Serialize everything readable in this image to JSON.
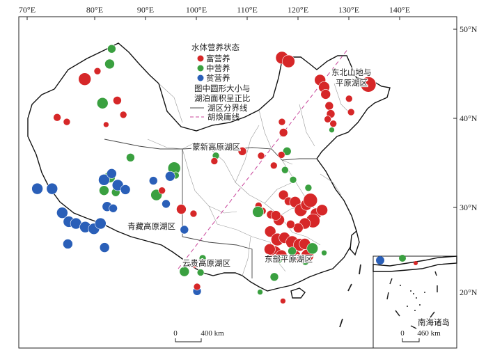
{
  "axes": {
    "lon_labels": [
      "70°E",
      "80°E",
      "90°E",
      "100°E",
      "110°E",
      "120°E",
      "130°E",
      "140°E"
    ],
    "lat_labels": [
      "50°N",
      "40°N",
      "30°N",
      "20°N"
    ]
  },
  "legend": {
    "title": "水体营养状态",
    "items": [
      {
        "label": "富营养",
        "color": "#d62728"
      },
      {
        "label": "中营养",
        "color": "#3aa040"
      },
      {
        "label": "贫营养",
        "color": "#2a5fb8"
      }
    ],
    "size_note_line1": "图中圆形大小与",
    "size_note_line2": "湖泊面积呈正比",
    "boundary_label": "湖区分界线",
    "huhuanyong_label": "胡焕庸线"
  },
  "regions": [
    {
      "key": "northeast_1",
      "text": "东北山地与"
    },
    {
      "key": "northeast_2",
      "text": "平原湖区"
    },
    {
      "key": "mengxin",
      "text": "蒙新高原湖区"
    },
    {
      "key": "qingzang",
      "text": "青藏高原湖区"
    },
    {
      "key": "yungui",
      "text": "云贵高原湖区"
    },
    {
      "key": "dongbu",
      "text": "东部平原湖区"
    }
  ],
  "inset": {
    "label": "南海诸岛",
    "scale_label": "460 km",
    "scale_zero": "0"
  },
  "scale": {
    "zero": "0",
    "label": "400 km"
  },
  "colors": {
    "eutrophic": "#d62728",
    "mesotrophic": "#3aa040",
    "oligotrophic": "#2a5fb8"
  },
  "lakes": [
    {
      "t": "e",
      "lon": 75.9,
      "lat": 40.1,
      "r": 5.5
    },
    {
      "t": "e",
      "lon": 77.8,
      "lat": 39.6,
      "r": 5
    },
    {
      "t": "e",
      "lon": 81,
      "lat": 44.4,
      "r": 9
    },
    {
      "t": "e",
      "lon": 83.5,
      "lat": 45.3,
      "r": 5
    },
    {
      "t": "e",
      "lon": 87.4,
      "lat": 42,
      "r": 6
    },
    {
      "t": "e",
      "lon": 88.6,
      "lat": 40.4,
      "r": 5
    },
    {
      "t": "e",
      "lon": 85.2,
      "lat": 39.3,
      "r": 4
    },
    {
      "t": "m",
      "lon": 85.9,
      "lat": 46.1,
      "r": 7
    },
    {
      "t": "m",
      "lon": 86.3,
      "lat": 47.8,
      "r": 6
    },
    {
      "t": "m",
      "lon": 84.5,
      "lat": 41.7,
      "r": 8
    },
    {
      "t": "m",
      "lon": 90,
      "lat": 35.6,
      "r": 6
    },
    {
      "t": "m",
      "lon": 85.9,
      "lat": 33.4,
      "r": 8
    },
    {
      "t": "m",
      "lon": 84.8,
      "lat": 31.9,
      "r": 7
    },
    {
      "t": "m",
      "lon": 87.1,
      "lat": 31.7,
      "r": 6
    },
    {
      "t": "m",
      "lon": 98.6,
      "lat": 34.4,
      "r": 9
    },
    {
      "t": "m",
      "lon": 95.1,
      "lat": 31.4,
      "r": 8
    },
    {
      "t": "m",
      "lon": 98.9,
      "lat": 33.6,
      "r": 5
    },
    {
      "t": "o",
      "lon": 72,
      "lat": 32.1,
      "r": 8
    },
    {
      "t": "o",
      "lon": 74.9,
      "lat": 32.1,
      "r": 8
    },
    {
      "t": "o",
      "lon": 76.9,
      "lat": 29.4,
      "r": 8
    },
    {
      "t": "o",
      "lon": 78.2,
      "lat": 28.4,
      "r": 8
    },
    {
      "t": "o",
      "lon": 79.6,
      "lat": 28.2,
      "r": 8
    },
    {
      "t": "o",
      "lon": 81.1,
      "lat": 27.8,
      "r": 8
    },
    {
      "t": "o",
      "lon": 82.8,
      "lat": 27.6,
      "r": 8
    },
    {
      "t": "o",
      "lon": 84.1,
      "lat": 28.2,
      "r": 8
    },
    {
      "t": "o",
      "lon": 78,
      "lat": 25.9,
      "r": 7
    },
    {
      "t": "o",
      "lon": 84.8,
      "lat": 33.1,
      "r": 8
    },
    {
      "t": "o",
      "lon": 86.3,
      "lat": 33.8,
      "r": 7
    },
    {
      "t": "o",
      "lon": 87.5,
      "lat": 32.5,
      "r": 8
    },
    {
      "t": "o",
      "lon": 85.4,
      "lat": 30.1,
      "r": 7
    },
    {
      "t": "o",
      "lon": 86.6,
      "lat": 29.9,
      "r": 6
    },
    {
      "t": "o",
      "lon": 89,
      "lat": 32,
      "r": 7
    },
    {
      "t": "o",
      "lon": 97.8,
      "lat": 33.5,
      "r": 7
    },
    {
      "t": "o",
      "lon": 94.5,
      "lat": 33,
      "r": 6
    },
    {
      "t": "o",
      "lon": 84.9,
      "lat": 25.5,
      "r": 7
    },
    {
      "t": "o",
      "lon": 97,
      "lat": 30.4,
      "r": 6
    },
    {
      "t": "o",
      "lon": 100.6,
      "lat": 27.5,
      "r": 6
    },
    {
      "t": "e",
      "lon": 96.2,
      "lat": 31.9,
      "r": 5
    },
    {
      "t": "e",
      "lon": 100,
      "lat": 29.8,
      "r": 7
    },
    {
      "t": "e",
      "lon": 102.4,
      "lat": 29.3,
      "r": 5
    },
    {
      "t": "m",
      "lon": 106.8,
      "lat": 35.8,
      "r": 5
    },
    {
      "t": "e",
      "lon": 106.5,
      "lat": 35.2,
      "r": 5
    },
    {
      "t": "m",
      "lon": 104.2,
      "lat": 24.3,
      "r": 5
    },
    {
      "t": "m",
      "lon": 103.8,
      "lat": 22.7,
      "r": 5
    },
    {
      "t": "m",
      "lon": 100.6,
      "lat": 22.8,
      "r": 7
    },
    {
      "t": "e",
      "lon": 102.6,
      "lat": 23.6,
      "r": 5
    },
    {
      "t": "o",
      "lon": 103.1,
      "lat": 20.6,
      "r": 6
    },
    {
      "t": "e",
      "lon": 103.1,
      "lat": 21.1,
      "r": 5
    },
    {
      "t": "e",
      "lon": 112,
      "lat": 36.3,
      "r": 6
    },
    {
      "t": "e",
      "lon": 115.7,
      "lat": 35.8,
      "r": 5
    },
    {
      "t": "e",
      "lon": 118.2,
      "lat": 34.7,
      "r": 5
    },
    {
      "t": "m",
      "lon": 120.8,
      "lat": 36.3,
      "r": 6
    },
    {
      "t": "e",
      "lon": 119.7,
      "lat": 35.9,
      "r": 5
    },
    {
      "t": "e",
      "lon": 120.1,
      "lat": 38.4,
      "r": 6
    },
    {
      "t": "e",
      "lon": 119.8,
      "lat": 39.6,
      "r": 5
    },
    {
      "t": "e",
      "lon": 119.8,
      "lat": 46.8,
      "r": 9
    },
    {
      "t": "e",
      "lon": 121.1,
      "lat": 46.4,
      "r": 9
    },
    {
      "t": "e",
      "lon": 127.3,
      "lat": 44.3,
      "r": 8
    },
    {
      "t": "e",
      "lon": 128.1,
      "lat": 43.5,
      "r": 8
    },
    {
      "t": "e",
      "lon": 128.4,
      "lat": 42.7,
      "r": 7
    },
    {
      "t": "e",
      "lon": 129.1,
      "lat": 41.4,
      "r": 6
    },
    {
      "t": "e",
      "lon": 129.4,
      "lat": 40.5,
      "r": 6
    },
    {
      "t": "e",
      "lon": 128.8,
      "lat": 39.9,
      "r": 5
    },
    {
      "t": "e",
      "lon": 129.9,
      "lat": 39.4,
      "r": 5
    },
    {
      "t": "m",
      "lon": 129.6,
      "lat": 38.7,
      "r": 4
    },
    {
      "t": "e",
      "lon": 133,
      "lat": 42.2,
      "r": 5
    },
    {
      "t": "e",
      "lon": 136.8,
      "lat": 43.8,
      "r": 11
    },
    {
      "t": "e",
      "lon": 133.4,
      "lat": 40.7,
      "r": 5
    },
    {
      "t": "e",
      "lon": 120.1,
      "lat": 31.4,
      "r": 7
    },
    {
      "t": "e",
      "lon": 121.1,
      "lat": 30.7,
      "r": 6
    },
    {
      "t": "e",
      "lon": 122.4,
      "lat": 30.6,
      "r": 8
    },
    {
      "t": "e",
      "lon": 123.5,
      "lat": 29.7,
      "r": 9
    },
    {
      "t": "e",
      "lon": 124.6,
      "lat": 30.3,
      "r": 8
    },
    {
      "t": "e",
      "lon": 125.4,
      "lat": 30.8,
      "r": 10
    },
    {
      "t": "e",
      "lon": 126.5,
      "lat": 29.3,
      "r": 8
    },
    {
      "t": "e",
      "lon": 125.9,
      "lat": 28.5,
      "r": 10
    },
    {
      "t": "e",
      "lon": 124.3,
      "lat": 28.2,
      "r": 8
    },
    {
      "t": "e",
      "lon": 127.7,
      "lat": 29.7,
      "r": 8
    },
    {
      "t": "e",
      "lon": 123,
      "lat": 27.7,
      "r": 7
    },
    {
      "t": "e",
      "lon": 121.5,
      "lat": 28.1,
      "r": 6
    },
    {
      "t": "e",
      "lon": 119.2,
      "lat": 28.6,
      "r": 8
    },
    {
      "t": "e",
      "lon": 117.6,
      "lat": 29.2,
      "r": 6
    },
    {
      "t": "e",
      "lon": 116,
      "lat": 29.6,
      "r": 5
    },
    {
      "t": "e",
      "lon": 115.2,
      "lat": 30.2,
      "r": 5
    },
    {
      "t": "e",
      "lon": 118.6,
      "lat": 29.1,
      "r": 7
    },
    {
      "t": "e",
      "lon": 117.5,
      "lat": 27.3,
      "r": 8
    },
    {
      "t": "e",
      "lon": 118.9,
      "lat": 26.4,
      "r": 9
    },
    {
      "t": "e",
      "lon": 120.3,
      "lat": 26.6,
      "r": 8
    },
    {
      "t": "e",
      "lon": 121.8,
      "lat": 26.1,
      "r": 9
    },
    {
      "t": "e",
      "lon": 123.3,
      "lat": 25.8,
      "r": 9
    },
    {
      "t": "e",
      "lon": 124.3,
      "lat": 25.9,
      "r": 8
    },
    {
      "t": "e",
      "lon": 118.3,
      "lat": 24.9,
      "r": 10
    },
    {
      "t": "e",
      "lon": 117.4,
      "lat": 25.3,
      "r": 8
    },
    {
      "t": "e",
      "lon": 119.7,
      "lat": 24.6,
      "r": 8
    },
    {
      "t": "e",
      "lon": 122.5,
      "lat": 24.6,
      "r": 7
    },
    {
      "t": "e",
      "lon": 124.8,
      "lat": 24.6,
      "r": 9
    },
    {
      "t": "e",
      "lon": 120,
      "lat": 19.5,
      "r": 4
    },
    {
      "t": "m",
      "lon": 115.1,
      "lat": 29.5,
      "r": 8
    },
    {
      "t": "m",
      "lon": 119.1,
      "lat": 24.2,
      "r": 6
    },
    {
      "t": "m",
      "lon": 125.8,
      "lat": 25.4,
      "r": 8
    },
    {
      "t": "m",
      "lon": 121.8,
      "lat": 25.1,
      "r": 6
    },
    {
      "t": "m",
      "lon": 118.3,
      "lat": 22.2,
      "r": 6
    },
    {
      "t": "m",
      "lon": 124.4,
      "lat": 23.9,
      "r": 5
    },
    {
      "t": "m",
      "lon": 128.1,
      "lat": 24.9,
      "r": 4
    },
    {
      "t": "m",
      "lon": 125,
      "lat": 32.2,
      "r": 5
    },
    {
      "t": "m",
      "lon": 115.5,
      "lat": 20.5,
      "r": 4
    },
    {
      "t": "m",
      "lon": 120.4,
      "lat": 34.2,
      "r": 5
    },
    {
      "t": "m",
      "lon": 122,
      "lat": 33.1,
      "r": 5
    }
  ],
  "inset_lakes": [
    {
      "t": "o",
      "x": 546,
      "y": 374,
      "r": 6
    },
    {
      "t": "m",
      "x": 578,
      "y": 371,
      "r": 5
    },
    {
      "t": "e",
      "x": 597,
      "y": 378,
      "r": 3
    }
  ]
}
